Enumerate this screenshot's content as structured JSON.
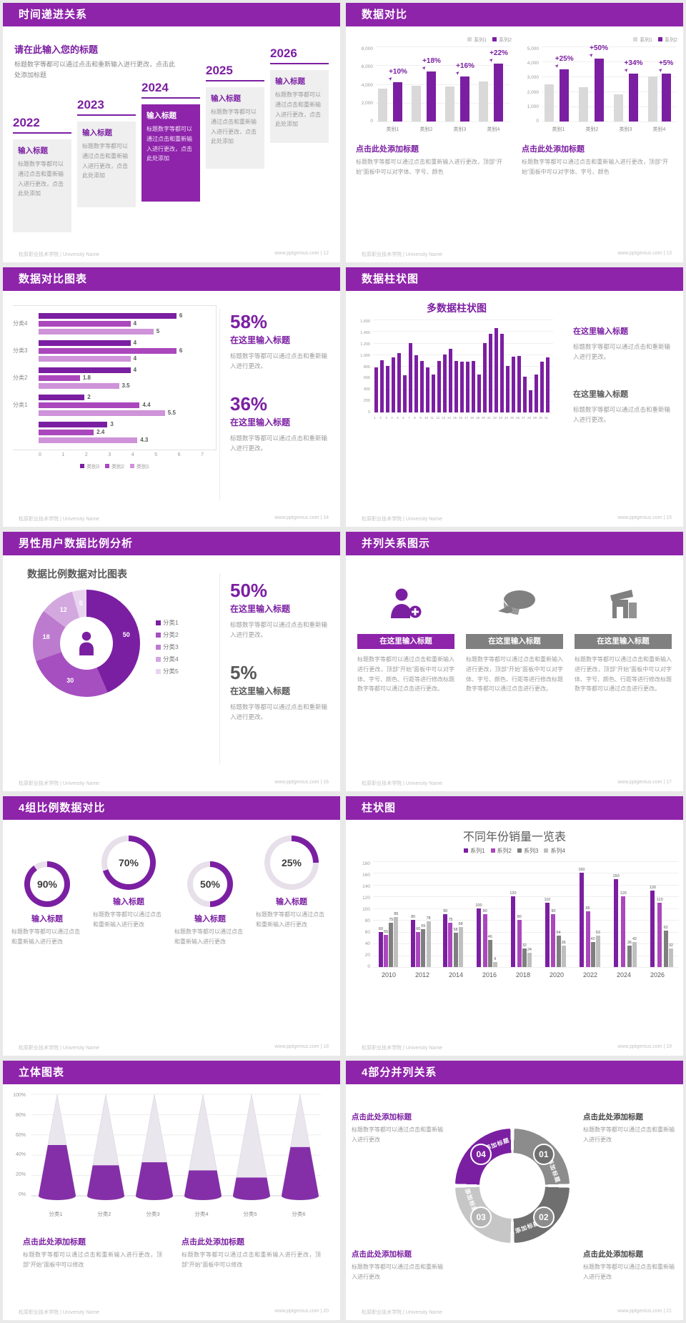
{
  "footer": {
    "left": "松原职业技术学院 | University Name",
    "site": "www.pptgenius.com"
  },
  "colors": {
    "header_purple": "#8E24AA",
    "purple_dark": "#7B1FA2",
    "purple_mid": "#AB47BC",
    "purple_light": "#CE93D8",
    "gray_bar": "#D9D9D9",
    "gray_dark": "#6F6F6F",
    "gray_mid": "#8C8C8C",
    "gray_light": "#C6C6C6",
    "text_dark": "#595959",
    "donut_palette": [
      "#7B1FA2",
      "#A64FC0",
      "#BC7BCE",
      "#D3A8DF",
      "#E9D4F0"
    ],
    "hbar_palette": [
      "#7B1FA2",
      "#AB47BC",
      "#CE93D8"
    ],
    "grouped_palette": [
      "#7B1FA2",
      "#AB47BC",
      "#7F7F7F",
      "#BFBFBF"
    ],
    "cycle_palette": [
      "#8C8C8C",
      "#6F6F6F",
      "#C6C6C6",
      "#7B1FA2"
    ],
    "cycle_badges": [
      "#6F6F6F",
      "#8C8C8C",
      "#B5B5B5",
      "#7B1FA2"
    ]
  },
  "slides": {
    "timeline": {
      "page": "12",
      "header": "时间递进关系",
      "intro_title": "请在此输入您的标题",
      "intro_text": "标题数字等都可以通过点击和重新输入进行更改，点击此处添加标题",
      "milestones": [
        {
          "year": "2022",
          "title": "输入标题",
          "text": "标题数字等都可以通过点击和重新输入进行更改，点击此处添加",
          "highlight": false
        },
        {
          "year": "2023",
          "title": "输入标题",
          "text": "标题数字等都可以通过点击和重新输入进行更改，点击此处添加",
          "highlight": false
        },
        {
          "year": "2024",
          "title": "输入标题",
          "text": "标题数字等都可以通过点击和重新输入进行更改，点击此处添加",
          "highlight": true
        },
        {
          "year": "2025",
          "title": "输入标题",
          "text": "标题数字等都可以通过点击和重新输入进行更改，点击此处添加",
          "highlight": false
        },
        {
          "year": "2026",
          "title": "输入标题",
          "text": "标题数字等都可以通过点击和重新输入进行更改，点击此处添加",
          "highlight": false
        }
      ]
    },
    "compare": {
      "page": "13",
      "header": "数据对比",
      "caption_title": "点击此处添加标题",
      "caption_text": "标题数字等都可以通过点击和重新输入进行更改，顶部“开始”面板中可以对字体、字号、颜色"
    },
    "hbar": {
      "page": "14",
      "header": "数据对比图表",
      "stats": [
        {
          "pct": "58%",
          "title": "在这里输入标题",
          "text": "标题数字等都可以通过点击和重新输入进行更改。"
        },
        {
          "pct": "36%",
          "title": "在这里输入标题",
          "text": "标题数字等都可以通过点击和重新输入进行更改。"
        }
      ]
    },
    "col31": {
      "page": "15",
      "header": "数据柱状图",
      "blocks": [
        {
          "title": "在这里输入标题",
          "purple": true,
          "text": "标题数字等都可以通过点击和重新输入进行更改。"
        },
        {
          "title": "在这里输入标题",
          "purple": false,
          "text": "标题数字等都可以通过点击和重新输入进行更改。"
        }
      ]
    },
    "donut": {
      "page": "16",
      "header": "男性用户数据比例分析",
      "stats": [
        {
          "pct": "50%",
          "title": "在这里输入标题",
          "purple": true,
          "text": "标题数字等都可以通过点击和重新输入进行更改。"
        },
        {
          "pct": "5%",
          "title": "在这里输入标题",
          "purple": false,
          "text": "标题数字等都可以通过点击和重新输入进行更改。"
        }
      ]
    },
    "triple": {
      "page": "17",
      "header": "并列关系图示",
      "items": [
        {
          "icon": "person-add-icon",
          "accent": true,
          "title": "在这里输入标题",
          "text": "标题数字等都可以通过点击和重新输入进行更改，顶部“开始”面板中可以对字体、字号、颜色、行距等进行修改标题数字等都可以通过点击进行更改。"
        },
        {
          "icon": "pie-3d-icon",
          "accent": false,
          "title": "在这里输入标题",
          "text": "标题数字等都可以通过点击和重新输入进行更改，顶部“开始”面板中可以对字体、字号、颜色、行距等进行修改标题数字等都可以通过点击进行更改。"
        },
        {
          "icon": "building-icon",
          "accent": false,
          "title": "在这里输入标题",
          "text": "标题数字等都可以通过点击和重新输入进行更改，顶部“开始”面板中可以对字体、字号、颜色、行距等进行修改标题数字等都可以通过点击进行更改。"
        }
      ]
    },
    "rings": {
      "page": "18",
      "header": "4组比例数据对比",
      "items": [
        {
          "pct": "90%",
          "value": 90,
          "raised": false,
          "title": "输入标题",
          "text": "标题数字等都可以通过点击和重新输入进行更改"
        },
        {
          "pct": "70%",
          "value": 70,
          "raised": true,
          "title": "输入标题",
          "text": "标题数字等都可以通过点击和重新输入进行更改"
        },
        {
          "pct": "50%",
          "value": 50,
          "raised": false,
          "title": "输入标题",
          "text": "标题数字等都可以通过点击和重新输入进行更改"
        },
        {
          "pct": "25%",
          "value": 25,
          "raised": true,
          "title": "输入标题",
          "text": "标题数字等都可以通过点击和重新输入进行更改"
        }
      ]
    },
    "grouped": {
      "page": "19",
      "header": "柱状图"
    },
    "cones": {
      "page": "20",
      "header": "立体图表",
      "captions": [
        {
          "title": "点击此处添加标题",
          "text": "标题数字等都可以通过点击和重新输入进行更改，顶部“开始”面板中可以修改"
        },
        {
          "title": "点击此处添加标题",
          "text": "标题数字等都可以通过点击和重新输入进行更改，顶部“开始”面板中可以修改"
        }
      ]
    },
    "cycle": {
      "page": "21",
      "header": "4部分并列关系",
      "blocks": [
        {
          "pos": "tl",
          "purple": true,
          "title": "点击此处添加标题",
          "text": "标题数字等都可以通过点击和重新输入进行更改"
        },
        {
          "pos": "tr",
          "purple": false,
          "title": "点击此处添加标题",
          "text": "标题数字等都可以通过点击和重新输入进行更改"
        },
        {
          "pos": "bl",
          "purple": true,
          "title": "点击此处添加标题",
          "text": "标题数字等都可以通过点击和重新输入进行更改"
        },
        {
          "pos": "br",
          "purple": false,
          "title": "点击此处添加标题",
          "text": "标题数字等都可以通过点击和重新输入进行更改"
        }
      ]
    }
  },
  "chart_data": [
    {
      "id": "compare-left",
      "type": "bar",
      "categories": [
        "类别1",
        "类别2",
        "类别3",
        "类别4"
      ],
      "series": [
        {
          "name": "系列1",
          "values": [
            3500,
            3800,
            3700,
            4300
          ]
        },
        {
          "name": "系列2",
          "values": [
            4200,
            5300,
            4800,
            6200
          ]
        }
      ],
      "annotations": [
        "+10%",
        "+18%",
        "+16%",
        "+22%"
      ],
      "ylim": [
        0,
        8000
      ],
      "ytick_step": 2000,
      "grid": true,
      "legend_position": "top-right"
    },
    {
      "id": "compare-right",
      "type": "bar",
      "categories": [
        "类别1",
        "类别2",
        "类别3",
        "类别4"
      ],
      "series": [
        {
          "name": "系列1",
          "values": [
            2500,
            2300,
            1800,
            3000
          ]
        },
        {
          "name": "系列2",
          "values": [
            3500,
            4200,
            3200,
            3200
          ]
        }
      ],
      "annotations": [
        "+25%",
        "+50%",
        "+34%",
        "+5%"
      ],
      "ylim": [
        0,
        5000
      ],
      "ytick_step": 1000,
      "grid": true,
      "legend_position": "top-right"
    },
    {
      "id": "hbar",
      "type": "bar",
      "orientation": "horizontal",
      "categories": [
        "分类4",
        "分类3",
        "分类2",
        "分类1",
        ""
      ],
      "series": [
        {
          "name": "类别3",
          "values": [
            6,
            4,
            4,
            2,
            3
          ]
        },
        {
          "name": "类别2",
          "values": [
            4,
            6,
            1.8,
            4.4,
            2.4
          ]
        },
        {
          "name": "类别1",
          "values": [
            5,
            4,
            3.5,
            5.5,
            4.3
          ]
        }
      ],
      "xlim": [
        0,
        7
      ],
      "xticks": [
        0,
        1,
        2,
        3,
        4,
        5,
        6,
        7
      ],
      "legend_position": "bottom"
    },
    {
      "id": "col31",
      "type": "bar",
      "title": "多数据柱状图",
      "x_labels": [
        "1",
        "2",
        "3",
        "4",
        "5",
        "6",
        "7",
        "8",
        "9",
        "10",
        "11",
        "12",
        "13",
        "14",
        "15",
        "16",
        "17",
        "18",
        "19",
        "20",
        "21",
        "22",
        "23",
        "24",
        "25",
        "26",
        "27",
        "28",
        "29",
        "30",
        "31"
      ],
      "values": [
        780,
        900,
        800,
        950,
        1020,
        640,
        1200,
        980,
        890,
        780,
        650,
        890,
        1000,
        1100,
        890,
        880,
        870,
        890,
        650,
        1200,
        1350,
        1450,
        1350,
        800,
        960,
        970,
        620,
        380,
        650,
        870,
        950
      ],
      "ylim": [
        0,
        1600
      ],
      "ytick_step": 200,
      "grid": true
    },
    {
      "id": "donut5",
      "type": "pie",
      "title": "数据比例数据对比图表",
      "labels": [
        "分类1",
        "分类2",
        "分类3",
        "分类4",
        "分类5"
      ],
      "values": [
        50,
        30,
        18,
        12,
        5
      ],
      "legend_position": "right"
    },
    {
      "id": "rings4",
      "type": "pie",
      "variant": "donut-set",
      "values": [
        90,
        70,
        50,
        25
      ]
    },
    {
      "id": "grouped",
      "type": "bar",
      "title": "不同年份销量一览表",
      "categories": [
        "2010",
        "2012",
        "2014",
        "2016",
        "2018",
        "2020",
        "2022",
        "2024",
        "2026"
      ],
      "series": [
        {
          "name": "系列1",
          "values": [
            60,
            80,
            90,
            100,
            120,
            110,
            160,
            150,
            130
          ]
        },
        {
          "name": "系列2",
          "values": [
            55,
            60,
            75,
            90,
            80,
            90,
            95,
            120,
            110
          ]
        },
        {
          "name": "系列3",
          "values": [
            75,
            65,
            58,
            46,
            32,
            54,
            42,
            36,
            62
          ]
        },
        {
          "name": "系列4",
          "values": [
            85,
            78,
            68,
            9,
            24,
            36,
            53,
            42,
            32
          ]
        }
      ],
      "ylim": [
        0,
        180
      ],
      "ytick_step": 20,
      "grid": true,
      "legend_position": "top"
    },
    {
      "id": "cones",
      "type": "bar",
      "variant": "cone-3d",
      "categories": [
        "分类1",
        "分类2",
        "分类3",
        "分类4",
        "分类5",
        "分类6"
      ],
      "values": [
        50,
        30,
        33,
        25,
        18,
        48
      ],
      "unit": "%",
      "ylim": [
        0,
        100
      ],
      "yticks": [
        "0%",
        "20%",
        "40%",
        "60%",
        "80%",
        "100%"
      ]
    },
    {
      "id": "cycle",
      "type": "pie",
      "variant": "cycle-ring",
      "segments": [
        "01",
        "02",
        "03",
        "04"
      ],
      "labels": [
        "添加标题",
        "添加标题",
        "添加标题",
        "添加标题"
      ]
    }
  ]
}
